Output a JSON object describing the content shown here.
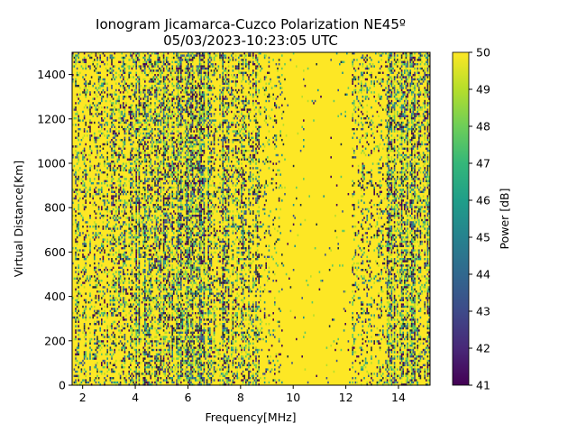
{
  "chart_data": {
    "type": "heatmap",
    "title": "Ionogram Jicamarca-Cuzco Polarization NE45º",
    "subtitle": "05/03/2023-10:23:05 UTC",
    "xlabel": "Frequency[MHz]",
    "ylabel": "Virtual Distance[Km]",
    "xlim": [
      1.6,
      15.2
    ],
    "ylim": [
      0,
      1500
    ],
    "xticks": [
      2,
      4,
      6,
      8,
      10,
      12,
      14
    ],
    "yticks": [
      0,
      200,
      400,
      600,
      800,
      1000,
      1200,
      1400
    ],
    "colorbar": {
      "label": "Power [dB]",
      "range": [
        41,
        50
      ],
      "ticks": [
        41,
        42,
        43,
        44,
        45,
        46,
        47,
        48,
        49,
        50
      ],
      "colormap": "viridis"
    },
    "background_value": 50,
    "noise_bands": [
      {
        "freq_range": [
          1.6,
          4.0
        ],
        "density": 0.3
      },
      {
        "freq_range": [
          4.0,
          7.5
        ],
        "density": 0.5
      },
      {
        "freq_range": [
          7.5,
          8.7
        ],
        "density": 0.35
      },
      {
        "freq_range": [
          8.7,
          9.6
        ],
        "density": 0.12
      },
      {
        "freq_range": [
          9.6,
          12.2
        ],
        "density": 0.02
      },
      {
        "freq_range": [
          12.2,
          13.5
        ],
        "density": 0.2
      },
      {
        "freq_range": [
          13.5,
          15.2
        ],
        "density": 0.5
      }
    ]
  }
}
